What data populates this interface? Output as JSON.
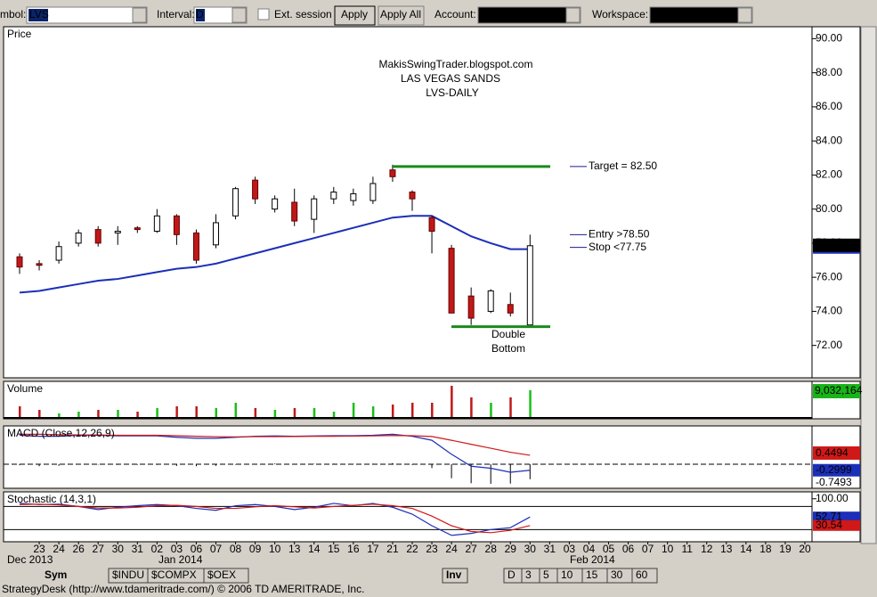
{
  "toolbar": {
    "symbol_label": "mbol:",
    "symbol": "LVS",
    "interval_label": "Interval:",
    "interval": "D",
    "ext_session": "Ext. session",
    "apply": "Apply",
    "apply_all": "Apply All",
    "account_label": "Account:",
    "workspace_label": "Workspace:"
  },
  "price_panel": {
    "label": "Price",
    "ylim": [
      70.1,
      90.7
    ],
    "yticks": [
      {
        "value": 90,
        "label": "90.00"
      },
      {
        "value": 88,
        "label": "88.00"
      },
      {
        "value": 86,
        "label": "86.00"
      },
      {
        "value": 84,
        "label": "84.00"
      },
      {
        "value": 82,
        "label": "82.00"
      },
      {
        "value": 80,
        "label": "80.00"
      },
      {
        "value": 78,
        "label": "78.00"
      },
      {
        "value": 76,
        "label": "76.00"
      },
      {
        "value": 74,
        "label": "74.00"
      },
      {
        "value": 72,
        "label": "72.00"
      }
    ],
    "open": [
      77.2,
      76.8,
      77.0,
      78.0,
      78.8,
      78.6,
      78.9,
      78.7,
      79.6,
      78.6,
      77.9,
      79.6,
      81.7,
      80.0,
      80.4,
      79.4,
      80.6,
      80.5,
      80.5,
      82.3,
      81.0,
      79.5,
      77.7,
      74.9,
      74.0,
      74.4,
      73.2
    ],
    "high": [
      77.4,
      77.0,
      78.1,
      78.8,
      79.0,
      79.0,
      79.0,
      80.0,
      79.7,
      78.8,
      79.7,
      81.3,
      81.9,
      80.8,
      81.2,
      80.8,
      81.3,
      81.2,
      81.9,
      82.6,
      81.1,
      79.6,
      77.9,
      75.4,
      75.3,
      75.1,
      78.5
    ],
    "low": [
      76.2,
      76.4,
      76.8,
      77.8,
      77.8,
      77.9,
      78.6,
      78.6,
      77.9,
      76.8,
      77.7,
      79.4,
      80.3,
      79.8,
      79.0,
      78.6,
      80.3,
      80.2,
      80.3,
      81.6,
      79.9,
      77.4,
      73.9,
      73.2,
      73.9,
      73.7,
      73.2
    ],
    "close": [
      76.6,
      76.7,
      77.8,
      78.6,
      78.0,
      78.7,
      78.8,
      79.6,
      78.5,
      77.0,
      79.2,
      81.2,
      80.6,
      80.6,
      79.3,
      80.6,
      81.0,
      80.9,
      81.5,
      81.9,
      80.6,
      78.7,
      73.9,
      73.6,
      75.2,
      73.9,
      77.85
    ],
    "ma": [
      75.1,
      75.2,
      75.4,
      75.6,
      75.8,
      75.9,
      76.1,
      76.3,
      76.5,
      76.6,
      76.8,
      77.1,
      77.4,
      77.7,
      78.0,
      78.3,
      78.6,
      78.9,
      79.2,
      79.5,
      79.6,
      79.6,
      79.0,
      78.4,
      78.0,
      77.65,
      77.65
    ],
    "annotations": {
      "site": "MakisSwingTrader.blogspot.com",
      "name": "LAS VEGAS SANDS",
      "ticker": "LVS-DAILY",
      "target": "Target = 82.50",
      "entry": "Entry >78.50",
      "stop": "Stop <77.75",
      "double": "Double",
      "bottom": "Bottom"
    },
    "target_level": 82.5,
    "entry_level": 78.5,
    "stop_level": 77.75,
    "bottom_level": 73.1
  },
  "volume_panel": {
    "label": "Volume",
    "ylim": [
      0,
      10800000
    ],
    "values": [
      3600000,
      2400000,
      1200000,
      1800000,
      2400000,
      2400000,
      1800000,
      3000000,
      3600000,
      3600000,
      3000000,
      4800000,
      3000000,
      2400000,
      3000000,
      3000000,
      1800000,
      4800000,
      3600000,
      4200000,
      4800000,
      4800000,
      10500000,
      6600000,
      4800000,
      6600000,
      9032164
    ],
    "value_labels": [
      null,
      null,
      null,
      null,
      null,
      null,
      null,
      null,
      null,
      null,
      null,
      null,
      null,
      null,
      null,
      null,
      null,
      null,
      null,
      null,
      null,
      null,
      null,
      null,
      null,
      null,
      "9,032,164"
    ]
  },
  "macd_panel": {
    "label": "MACD (Close,12,26,9)",
    "ylim": [
      -1.07,
      1.83
    ],
    "macd": [
      1.45,
      1.4,
      1.4,
      1.45,
      1.45,
      1.42,
      1.42,
      1.42,
      1.35,
      1.3,
      1.3,
      1.35,
      1.4,
      1.42,
      1.4,
      1.42,
      1.43,
      1.43,
      1.45,
      1.5,
      1.4,
      1.2,
      0.5,
      -0.1,
      -0.2,
      -0.4,
      -0.2999
    ],
    "signal": [
      1.5,
      1.5,
      1.48,
      1.47,
      1.47,
      1.45,
      1.45,
      1.45,
      1.43,
      1.4,
      1.38,
      1.37,
      1.38,
      1.38,
      1.39,
      1.4,
      1.4,
      1.41,
      1.42,
      1.44,
      1.43,
      1.39,
      1.2,
      1.0,
      0.8,
      0.6,
      0.4494
    ],
    "histogram": [
      -0.05,
      -0.1,
      -0.08,
      -0.02,
      -0.02,
      -0.03,
      -0.03,
      -0.03,
      -0.08,
      -0.1,
      -0.08,
      -0.02,
      0.02,
      0.04,
      0.01,
      0.02,
      0.03,
      0.02,
      0.03,
      0.06,
      -0.03,
      -0.19,
      -0.7,
      -0.95,
      -0.98,
      -0.97,
      -0.7493
    ]
  },
  "stochastic_panel": {
    "label": "Stochastic (14,3,1)",
    "ylim": [
      -7,
      111
    ],
    "yticks": [
      {
        "value": 100,
        "label": "100.00"
      }
    ],
    "levels": [
      80,
      20
    ],
    "k": [
      88,
      85,
      86,
      80,
      72,
      78,
      82,
      85,
      82,
      75,
      70,
      82,
      85,
      80,
      72,
      78,
      88,
      82,
      88,
      78,
      60,
      30,
      5,
      10,
      20,
      25,
      52.71
    ],
    "d": [
      85,
      86,
      84,
      80,
      76,
      76,
      78,
      82,
      83,
      80,
      75,
      75,
      79,
      82,
      79,
      76,
      80,
      83,
      86,
      82,
      75,
      55,
      30,
      15,
      12,
      18,
      30.54
    ]
  },
  "x_axis": {
    "dates": [
      "23",
      "24",
      "26",
      "27",
      "30",
      "31",
      "02",
      "03",
      "06",
      "07",
      "08",
      "09",
      "10",
      "13",
      "14",
      "15",
      "16",
      "17",
      "21",
      "22",
      "23",
      "24",
      "27",
      "28",
      "29",
      "30",
      "31",
      "03",
      "04",
      "05",
      "06",
      "07",
      "10",
      "11",
      "12",
      "13",
      "14",
      "18",
      "19",
      "20"
    ],
    "months": [
      "Dec 2013",
      "Jan 2014",
      "Feb 2014"
    ]
  },
  "tabs": {
    "sym": "Sym",
    "symbols": [
      "$INDU",
      "$COMPX",
      "$OEX"
    ],
    "inv": "Inv",
    "intervals": [
      "D",
      "3",
      "5",
      "10",
      "15",
      "30",
      "60"
    ]
  },
  "status": "StrategyDesk (http://www.tdameritrade.com/) © 2006 TD AMERITRADE, Inc."
}
